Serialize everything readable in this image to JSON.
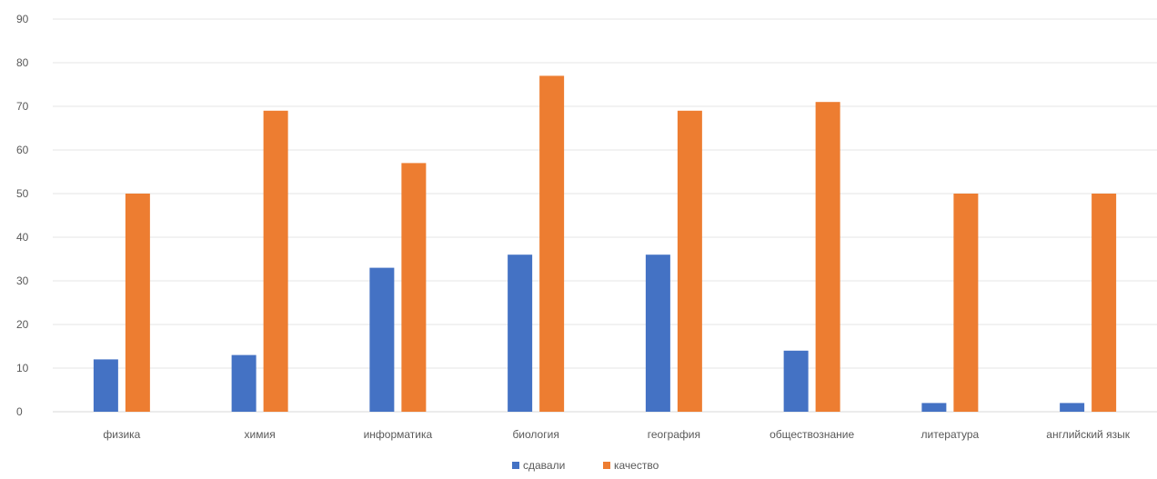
{
  "chart_data": {
    "type": "bar",
    "title": "",
    "xlabel": "",
    "ylabel": "",
    "categories": [
      "физика",
      "химия",
      "информатика",
      "биология",
      "география",
      "обществознание",
      "литература",
      "английский язык"
    ],
    "series": [
      {
        "name": "сдавали",
        "color": "#4472C4",
        "values": [
          12,
          13,
          33,
          36,
          36,
          14,
          2,
          2
        ]
      },
      {
        "name": "качество",
        "color": "#ED7D31",
        "values": [
          50,
          69,
          57,
          77,
          69,
          71,
          50,
          50
        ]
      }
    ],
    "ylim": [
      0,
      90
    ],
    "yticks": [
      0,
      10,
      20,
      30,
      40,
      50,
      60,
      70,
      80,
      90
    ],
    "grid": true,
    "legend_position": "bottom"
  }
}
